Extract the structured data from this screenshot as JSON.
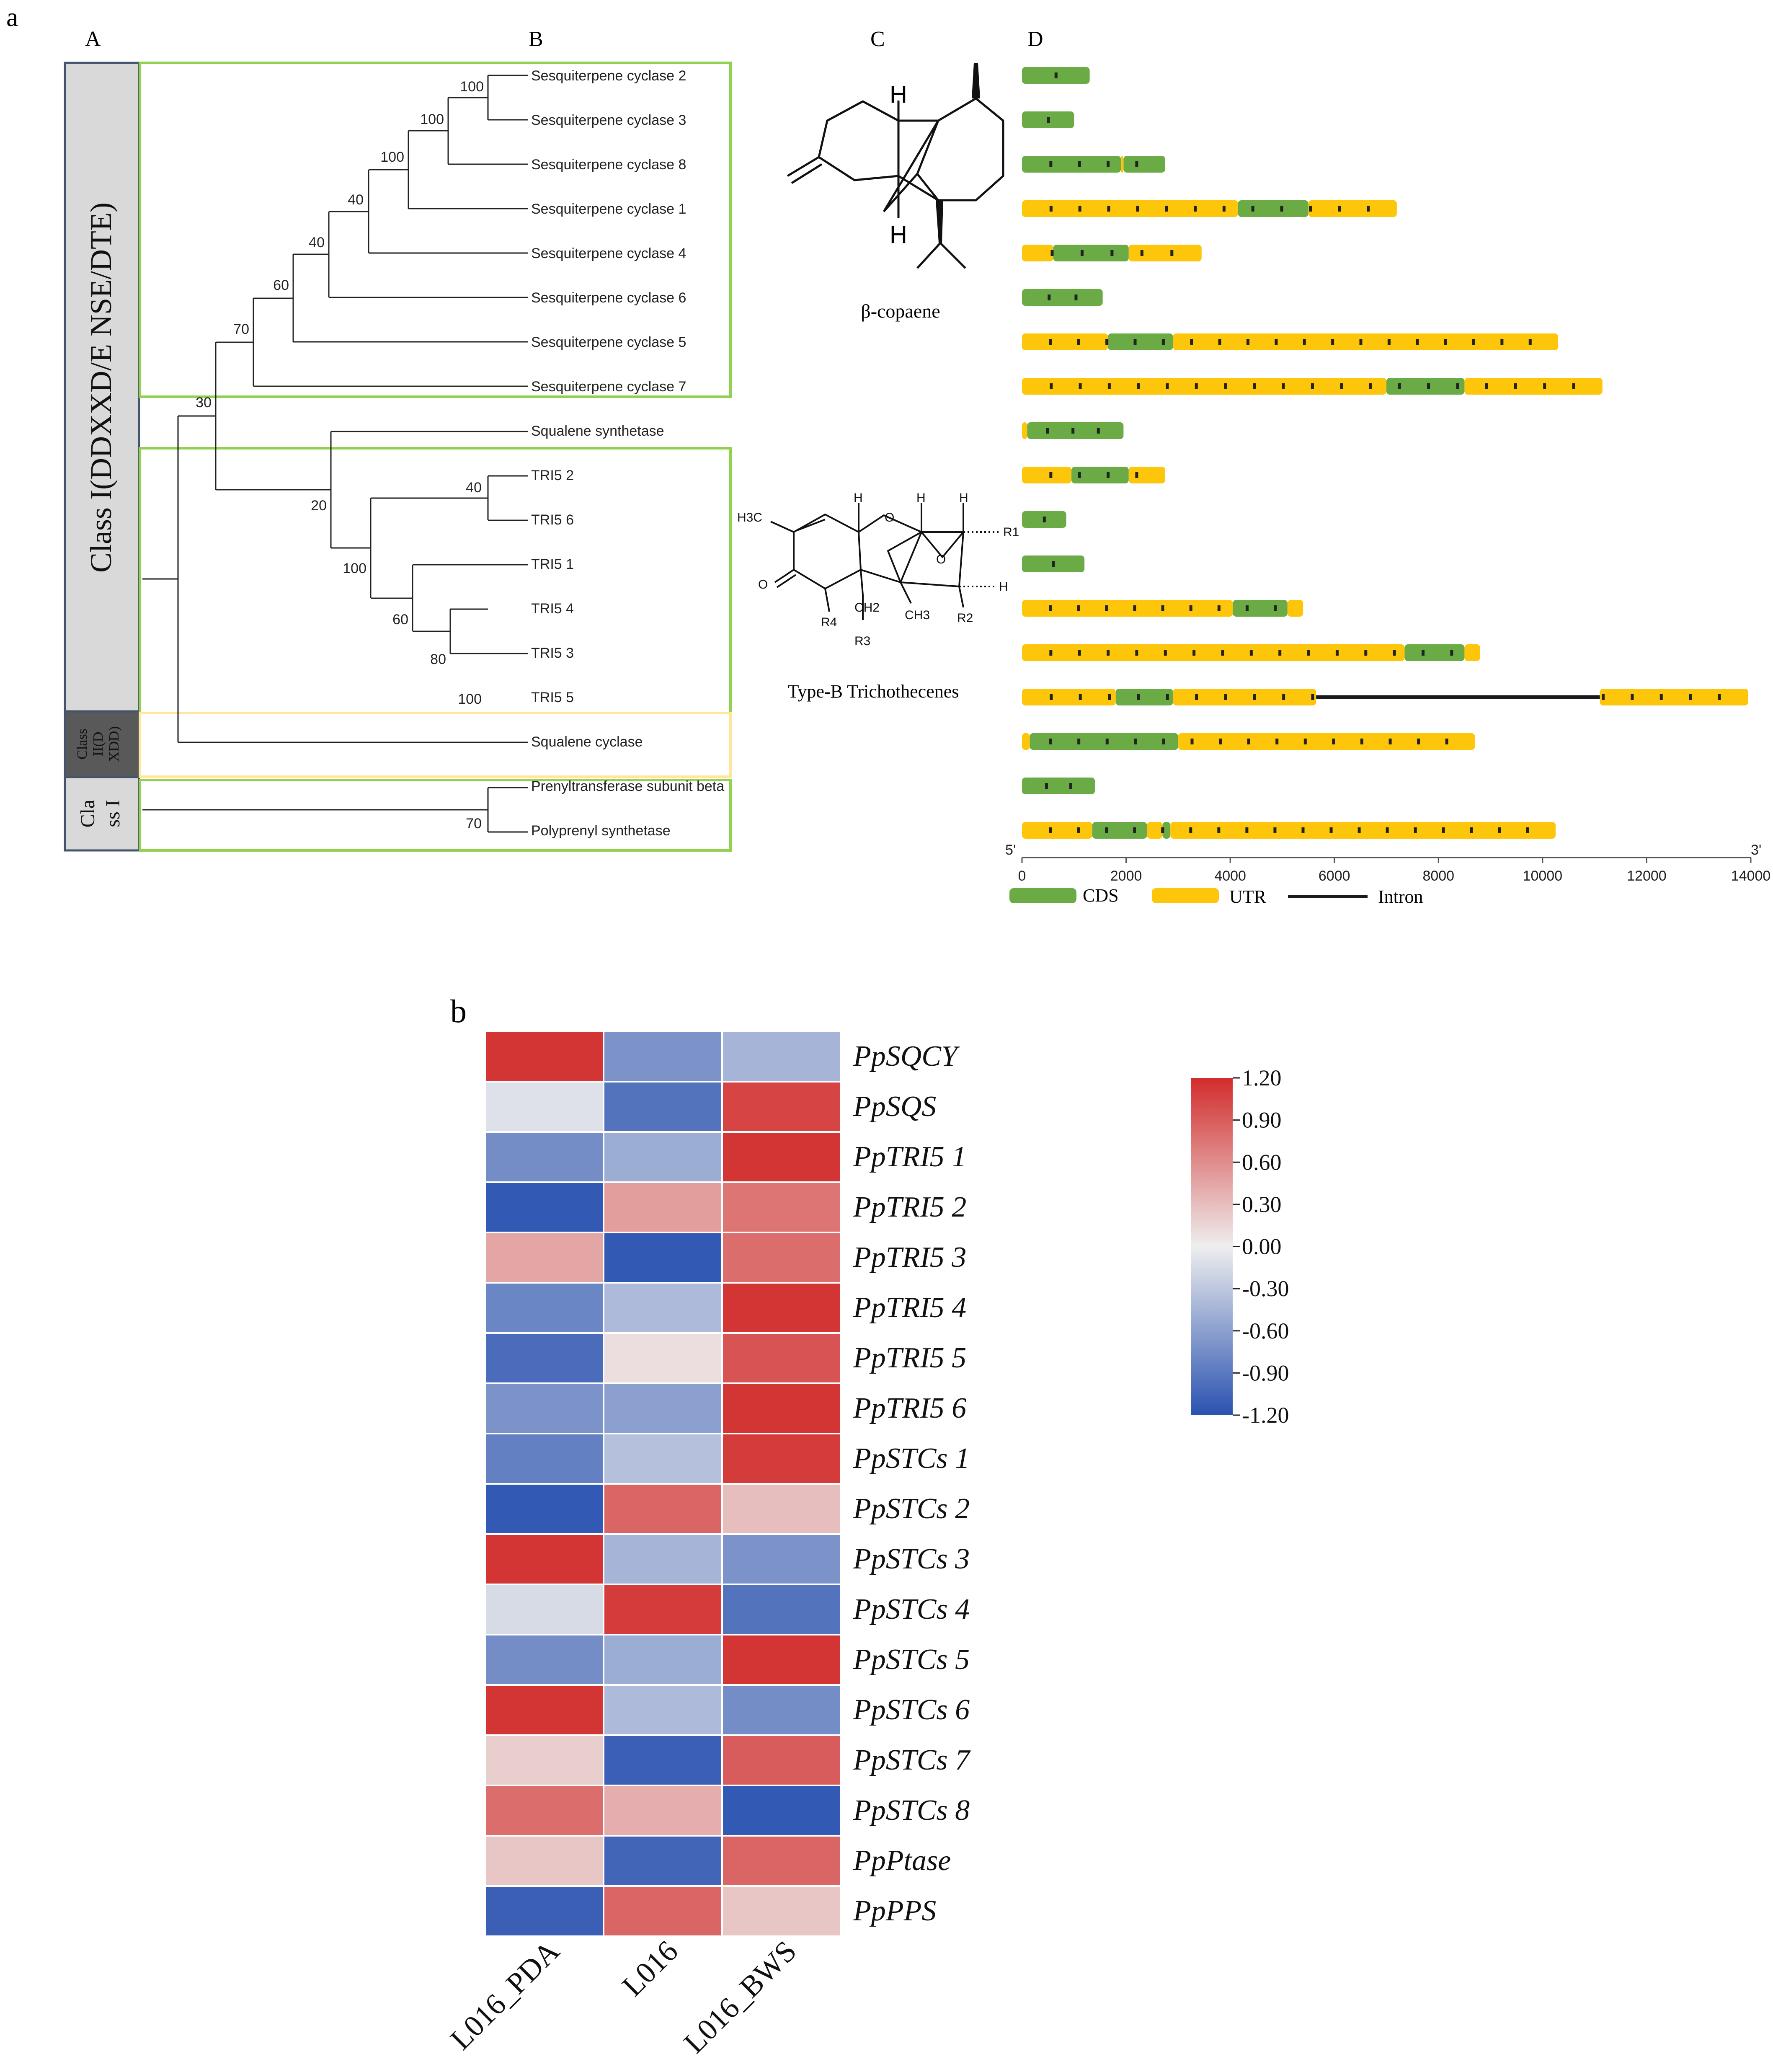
{
  "panel_labels": {
    "a": "a",
    "b": "b"
  },
  "column_labels": {
    "A": "A",
    "B": "B",
    "C": "C",
    "D": "D"
  },
  "classes": {
    "class1_terpene": "Class I(DDXXD/E NSE/DTE)",
    "class2": [
      "Class",
      "II(D",
      "XDD)"
    ],
    "class1_prenyl": [
      "Cla",
      "ss I"
    ]
  },
  "colors": {
    "cds": "#6aab45",
    "utr": "#fdc60a",
    "intron": "#1a1a1a",
    "box_green": "#92d050",
    "box_orange": "#ffe699",
    "class_grey": "#d9d9d9",
    "class_dark": "#595959",
    "class_border": "#44546a"
  },
  "tree": {
    "leaves": [
      "Sesquiterpene cyclase 2",
      "Sesquiterpene cyclase 3",
      "Sesquiterpene cyclase 8",
      "Sesquiterpene cyclase 1",
      "Sesquiterpene cyclase 4",
      "Sesquiterpene cyclase 6",
      "Sesquiterpene cyclase 5",
      "Sesquiterpene cyclase 7",
      "Squalene synthetase",
      "TRI5 2",
      "TRI5 6",
      "TRI5 1",
      "TRI5 4",
      "TRI5 3",
      "TRI5 5",
      "Squalene cyclase",
      "Prenyltransferase subunit beta",
      "Polyprenyl synthetase"
    ],
    "bootstrap": [
      "100",
      "100",
      "100",
      "40",
      "40",
      "60",
      "70",
      "30",
      "40",
      "20",
      "100",
      "60",
      "80",
      "100",
      "70"
    ]
  },
  "structures": {
    "copaene": "β-copaene",
    "trichothecene": "Type-B Trichothecenes",
    "atoms": {
      "h": "H",
      "h3c": "H3C",
      "o": "O",
      "ch2": "CH2",
      "ch3": "CH3",
      "r1": "R1",
      "r2": "R2",
      "r3": "R3",
      "r4": "R4"
    }
  },
  "gene_structure": {
    "end5": "5'",
    "end3": "3'",
    "axis_max": 14000,
    "ticks": [
      0,
      2000,
      4000,
      6000,
      8000,
      10000,
      12000,
      14000
    ],
    "legend": {
      "cds": "CDS",
      "utr": "UTR",
      "intron": "Intron"
    },
    "genes": [
      {
        "length": 1300,
        "segments": [
          [
            "C",
            0,
            1300
          ]
        ]
      },
      {
        "length": 1000,
        "segments": [
          [
            "C",
            0,
            1000
          ]
        ]
      },
      {
        "length": 2750,
        "segments": [
          [
            "C",
            0,
            1900
          ],
          [
            "U",
            1900,
            1950
          ],
          [
            "C",
            1950,
            2750
          ]
        ]
      },
      {
        "length": 7200,
        "segments": [
          [
            "U",
            0,
            4150
          ],
          [
            "C",
            4150,
            5500
          ],
          [
            "U",
            5500,
            7200
          ]
        ]
      },
      {
        "length": 3450,
        "segments": [
          [
            "U",
            0,
            600
          ],
          [
            "C",
            600,
            2050
          ],
          [
            "U",
            2050,
            3450
          ]
        ]
      },
      {
        "length": 1550,
        "segments": [
          [
            "C",
            0,
            1550
          ]
        ]
      },
      {
        "length": 10300,
        "segments": [
          [
            "U",
            0,
            1650
          ],
          [
            "C",
            1650,
            2900
          ],
          [
            "U",
            2900,
            10300
          ]
        ]
      },
      {
        "length": 11150,
        "segments": [
          [
            "U",
            0,
            7000
          ],
          [
            "C",
            7000,
            8500
          ],
          [
            "U",
            8500,
            11150
          ]
        ]
      },
      {
        "length": 1950,
        "segments": [
          [
            "U",
            0,
            100
          ],
          [
            "C",
            100,
            1950
          ]
        ]
      },
      {
        "length": 2750,
        "segments": [
          [
            "U",
            0,
            950
          ],
          [
            "C",
            950,
            2050
          ],
          [
            "U",
            2050,
            2750
          ]
        ]
      },
      {
        "length": 850,
        "segments": [
          [
            "C",
            0,
            850
          ]
        ]
      },
      {
        "length": 1200,
        "segments": [
          [
            "C",
            0,
            1200
          ]
        ]
      },
      {
        "length": 5400,
        "segments": [
          [
            "U",
            0,
            4050
          ],
          [
            "C",
            4050,
            5100
          ],
          [
            "U",
            5100,
            5400
          ]
        ]
      },
      {
        "length": 8800,
        "segments": [
          [
            "U",
            0,
            7350
          ],
          [
            "C",
            7350,
            8500
          ],
          [
            "U",
            8500,
            8800
          ]
        ]
      },
      {
        "length": 13950,
        "segments": [
          [
            "U",
            0,
            1800
          ],
          [
            "C",
            1800,
            2900
          ],
          [
            "U",
            2900,
            5650
          ],
          [
            "I",
            5650,
            11100
          ],
          [
            "U",
            11100,
            13950
          ]
        ]
      },
      {
        "length": 8700,
        "segments": [
          [
            "U",
            0,
            150
          ],
          [
            "C",
            150,
            3000
          ],
          [
            "U",
            3000,
            8700
          ]
        ]
      },
      {
        "length": 1400,
        "segments": [
          [
            "C",
            0,
            1400
          ]
        ]
      },
      {
        "length": 10250,
        "segments": [
          [
            "U",
            0,
            1350
          ],
          [
            "C",
            1350,
            2400
          ],
          [
            "U",
            2400,
            2700
          ],
          [
            "C",
            2700,
            2850
          ],
          [
            "U",
            2850,
            10250
          ]
        ]
      }
    ]
  },
  "chart_data": {
    "type": "heatmap",
    "title": "",
    "columns": [
      "L016_PDA",
      "L016",
      "L016_BWS"
    ],
    "rows": [
      "PpSQCY",
      "PpSQS",
      "PpTRI5 1",
      "PpTRI5 2",
      "PpTRI5 3",
      "PpTRI5 4",
      "PpTRI5 5",
      "PpTRI5 6",
      "PpSTCs 1",
      "PpSTCs 2",
      "PpSTCs 3",
      "PpSTCs 4",
      "PpSTCs 5",
      "PpSTCs 6",
      "PpSTCs 7",
      "PpSTCs 8",
      "PpPtase",
      "PpPPS"
    ],
    "values": [
      [
        1.15,
        -0.7,
        -0.45
      ],
      [
        -0.1,
        -0.95,
        1.05
      ],
      [
        -0.75,
        -0.5,
        1.15
      ],
      [
        -1.15,
        0.5,
        0.75
      ],
      [
        0.45,
        -1.15,
        0.8
      ],
      [
        -0.8,
        -0.4,
        1.15
      ],
      [
        -1.0,
        0.1,
        0.95
      ],
      [
        -0.7,
        -0.6,
        1.15
      ],
      [
        -0.85,
        -0.35,
        1.1
      ],
      [
        -1.15,
        0.85,
        0.3
      ],
      [
        1.15,
        -0.45,
        -0.7
      ],
      [
        -0.15,
        1.1,
        -0.95
      ],
      [
        -0.75,
        -0.5,
        1.15
      ],
      [
        1.15,
        -0.4,
        -0.75
      ],
      [
        0.2,
        -1.1,
        0.9
      ],
      [
        0.8,
        0.4,
        -1.15
      ],
      [
        0.25,
        -1.05,
        0.85
      ],
      [
        -1.1,
        0.85,
        0.25
      ]
    ],
    "colorbar": {
      "min": -1.2,
      "max": 1.2,
      "ticks": [
        "1.20",
        "0.90",
        "0.60",
        "0.30",
        "0.00",
        "-0.30",
        "-0.60",
        "-0.90",
        "-1.20"
      ],
      "low_color": "#2a52b0",
      "mid_color": "#eeeeee",
      "high_color": "#d22c2c"
    }
  }
}
